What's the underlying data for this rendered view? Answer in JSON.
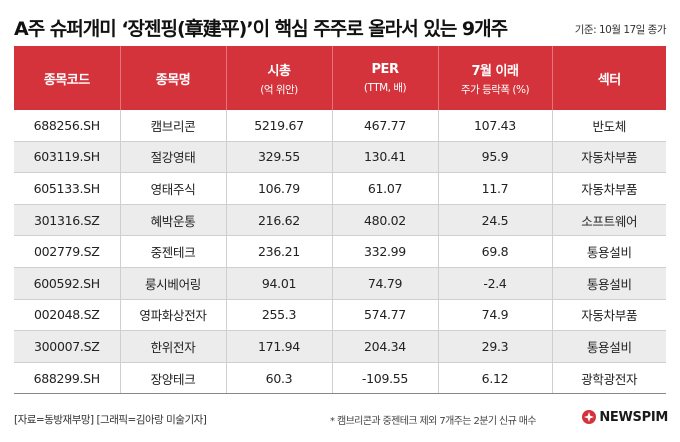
{
  "title": "A주 슈퍼개미 ‘장젠핑(章建平)’이 핵심 주주로 올라서 있는 9개주",
  "date_note": "기준: 10월 17일 종가",
  "colors": {
    "header_bg": "#d5333b",
    "stripe": "#ececec",
    "logo_red": "#d5333b"
  },
  "table": {
    "headers": [
      {
        "main": "종목코드",
        "sub": ""
      },
      {
        "main": "종목명",
        "sub": ""
      },
      {
        "main": "시총",
        "sub": "(억 위안)"
      },
      {
        "main": "PER",
        "sub": "(TTM, 배)"
      },
      {
        "main": "7월 이래",
        "sub": "주가 등락폭 (%)"
      },
      {
        "main": "섹터",
        "sub": ""
      }
    ],
    "rows": [
      {
        "code": "688256.SH",
        "name": "캠브리콘",
        "cap": "5219.67",
        "per": "467.77",
        "change": "107.43",
        "sector": "반도체"
      },
      {
        "code": "603119.SH",
        "name": "절강영태",
        "cap": "329.55",
        "per": "130.41",
        "change": "95.9",
        "sector": "자동차부품"
      },
      {
        "code": "605133.SH",
        "name": "영태주식",
        "cap": "106.79",
        "per": "61.07",
        "change": "11.7",
        "sector": "자동차부품"
      },
      {
        "code": "301316.SZ",
        "name": "혜박운통",
        "cap": "216.62",
        "per": "480.02",
        "change": "24.5",
        "sector": "소프트웨어"
      },
      {
        "code": "002779.SZ",
        "name": "중젠테크",
        "cap": "236.21",
        "per": "332.99",
        "change": "69.8",
        "sector": "통용설비"
      },
      {
        "code": "600592.SH",
        "name": "룽시베어링",
        "cap": "94.01",
        "per": "74.79",
        "change": "-2.4",
        "sector": "통용설비"
      },
      {
        "code": "002048.SZ",
        "name": "영파화상전자",
        "cap": "255.3",
        "per": "574.77",
        "change": "74.9",
        "sector": "자동차부품"
      },
      {
        "code": "300007.SZ",
        "name": "한위전자",
        "cap": "171.94",
        "per": "204.34",
        "change": "29.3",
        "sector": "통용설비"
      },
      {
        "code": "688299.SH",
        "name": "장양테크",
        "cap": "60.3",
        "per": "-109.55",
        "change": "6.12",
        "sector": "광학광전자"
      }
    ]
  },
  "footer": {
    "credit": "[자료=동방재부망] [그래픽=김아랑 미술기자]",
    "footnote": "* 캠브리콘과 중젠테크 제외 7개주는 2분기 신규 매수",
    "logo_text": "NEWSPIM",
    "logo_icon": "newspim-logo-icon"
  }
}
